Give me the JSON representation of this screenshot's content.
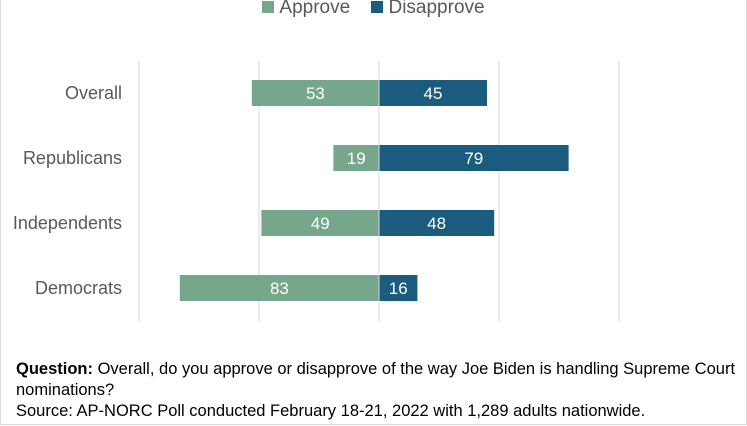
{
  "chart_data": {
    "type": "bar",
    "orientation": "horizontal",
    "stacking": "diverging",
    "categories": [
      "Overall",
      "Republicans",
      "Independents",
      "Democrats"
    ],
    "series": [
      {
        "name": "Approve",
        "values": [
          53,
          19,
          49,
          83
        ],
        "color": "#76a68c",
        "direction": "left"
      },
      {
        "name": "Disapprove",
        "values": [
          45,
          79,
          48,
          16
        ],
        "color": "#1b5b7d",
        "direction": "right"
      }
    ],
    "xlim": [
      -100,
      100
    ],
    "grid": true,
    "legend": "top-center"
  },
  "footer": {
    "question_label": "Question:",
    "question_text": " Overall, do you approve or disapprove of the way Joe Biden is handling Supreme Court nominations?",
    "source": "Source: AP-NORC Poll conducted February 18-21, 2022 with 1,289 adults nationwide."
  }
}
